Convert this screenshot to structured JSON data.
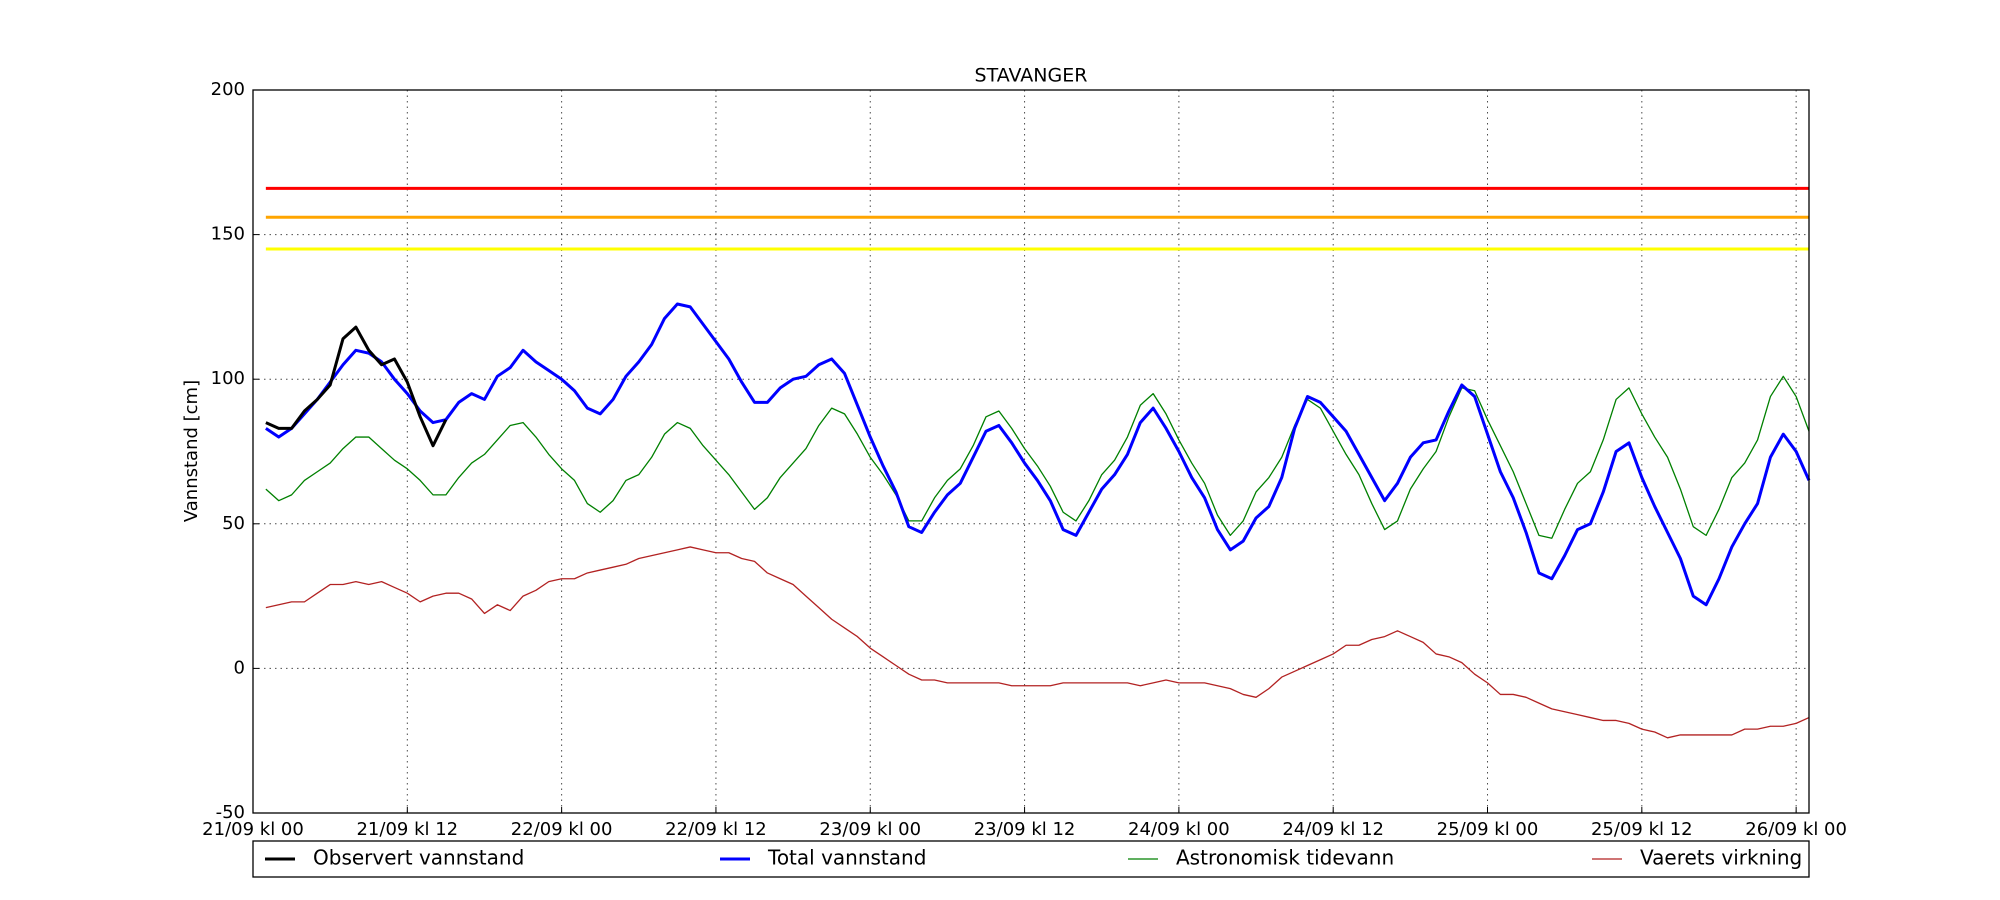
{
  "chart_data": {
    "type": "line",
    "title": "STAVANGER",
    "ylabel": "Vannstand [cm]",
    "xlim": [
      0,
      121
    ],
    "ylim": [
      -50,
      200
    ],
    "yticks": [
      -50,
      0,
      50,
      100,
      150,
      200
    ],
    "xticks": [
      {
        "value": 0,
        "label": "21/09 kl 00"
      },
      {
        "value": 12,
        "label": "21/09 kl 12"
      },
      {
        "value": 24,
        "label": "22/09 kl 00"
      },
      {
        "value": 36,
        "label": "22/09 kl 12"
      },
      {
        "value": 48,
        "label": "23/09 kl 00"
      },
      {
        "value": 60,
        "label": "23/09 kl 12"
      },
      {
        "value": 72,
        "label": "24/09 kl 00"
      },
      {
        "value": 84,
        "label": "24/09 kl 12"
      },
      {
        "value": 96,
        "label": "25/09 kl 00"
      },
      {
        "value": 108,
        "label": "25/09 kl 12"
      },
      {
        "value": 120,
        "label": "26/09 kl 00"
      }
    ],
    "grid": true,
    "legend": "bottom",
    "hlines": [
      {
        "value": 166,
        "color": "#ff0000"
      },
      {
        "value": 156,
        "color": "#ffa500"
      },
      {
        "value": 145,
        "color": "#ffff00"
      }
    ],
    "x": [
      1,
      2,
      3,
      4,
      5,
      6,
      7,
      8,
      9,
      10,
      11,
      12,
      13,
      14,
      15,
      16,
      17,
      18,
      19,
      20,
      21,
      22,
      23,
      24,
      25,
      26,
      27,
      28,
      29,
      30,
      31,
      32,
      33,
      34,
      35,
      36,
      37,
      38,
      39,
      40,
      41,
      42,
      43,
      44,
      45,
      46,
      47,
      48,
      49,
      50,
      51,
      52,
      53,
      54,
      55,
      56,
      57,
      58,
      59,
      60,
      61,
      62,
      63,
      64,
      65,
      66,
      67,
      68,
      69,
      70,
      71,
      72,
      73,
      74,
      75,
      76,
      77,
      78,
      79,
      80,
      81,
      82,
      83,
      84,
      85,
      86,
      87,
      88,
      89,
      90,
      91,
      92,
      93,
      94,
      95,
      96,
      97,
      98,
      99,
      100,
      101,
      102,
      103,
      104,
      105,
      106,
      107,
      108,
      109,
      110,
      111,
      112,
      113,
      114,
      115,
      116,
      117,
      118,
      119,
      120,
      121
    ],
    "series": [
      {
        "name": "Observert vannstand",
        "color": "#000000",
        "linewidth": 3,
        "values": [
          85,
          83,
          83,
          89,
          93,
          98,
          114,
          118,
          110,
          105,
          107,
          99,
          87,
          77,
          86,
          null,
          null,
          null,
          null,
          null,
          null,
          null,
          null,
          null,
          null,
          null,
          null,
          null,
          null,
          null,
          null,
          null,
          null,
          null,
          null,
          null,
          null,
          null,
          null,
          null,
          null,
          null,
          null,
          null,
          null,
          null,
          null,
          null,
          null,
          null,
          null,
          null,
          null,
          null,
          null,
          null,
          null,
          null,
          null,
          null,
          null,
          null,
          null,
          null,
          null,
          null,
          null,
          null,
          null,
          null,
          null,
          null,
          null,
          null,
          null,
          null,
          null,
          null,
          null,
          null,
          null,
          null,
          null,
          null,
          null,
          null,
          null,
          null,
          null,
          null,
          null,
          null,
          null,
          null,
          null,
          null,
          null,
          null,
          null,
          null,
          null,
          null,
          null,
          null,
          null,
          null,
          null,
          null,
          null,
          null,
          null,
          null,
          null,
          null,
          null,
          null,
          null,
          null,
          null,
          null,
          null
        ]
      },
      {
        "name": "Total vannstand",
        "color": "#0000ff",
        "linewidth": 3,
        "values": [
          83,
          80,
          83,
          88,
          93,
          99,
          105,
          110,
          109,
          106,
          100,
          95,
          89,
          85,
          86,
          92,
          95,
          93,
          101,
          104,
          110,
          106,
          103,
          100,
          96,
          90,
          88,
          93,
          101,
          106,
          112,
          121,
          126,
          125,
          119,
          113,
          107,
          99,
          92,
          92,
          97,
          100,
          101,
          105,
          107,
          102,
          91,
          80,
          70,
          61,
          49,
          47,
          54,
          60,
          64,
          73,
          82,
          84,
          78,
          71,
          65,
          58,
          48,
          46,
          54,
          62,
          67,
          74,
          85,
          90,
          83,
          75,
          66,
          59,
          48,
          41,
          44,
          52,
          56,
          66,
          83,
          94,
          92,
          87,
          82,
          74,
          66,
          58,
          64,
          73,
          78,
          79,
          89,
          98,
          94,
          81,
          68,
          59,
          47,
          33,
          31,
          39,
          48,
          50,
          61,
          75,
          78,
          66,
          56,
          47,
          38,
          25,
          22,
          31,
          42,
          50,
          57,
          73,
          81,
          75,
          65
        ]
      },
      {
        "name": "Astronomisk tidevann",
        "color": "#008000",
        "linewidth": 1.3,
        "values": [
          62,
          58,
          60,
          65,
          68,
          71,
          76,
          80,
          80,
          76,
          72,
          69,
          65,
          60,
          60,
          66,
          71,
          74,
          79,
          84,
          85,
          80,
          74,
          69,
          65,
          57,
          54,
          58,
          65,
          67,
          73,
          81,
          85,
          83,
          77,
          72,
          67,
          61,
          55,
          59,
          66,
          71,
          76,
          84,
          90,
          88,
          81,
          73,
          67,
          60,
          51,
          51,
          59,
          65,
          69,
          77,
          87,
          89,
          83,
          76,
          70,
          63,
          54,
          51,
          58,
          67,
          72,
          80,
          91,
          95,
          88,
          79,
          71,
          64,
          53,
          46,
          51,
          61,
          66,
          73,
          84,
          93,
          90,
          82,
          74,
          67,
          57,
          48,
          51,
          62,
          69,
          75,
          87,
          97,
          96,
          86,
          77,
          68,
          57,
          46,
          45,
          55,
          64,
          68,
          79,
          93,
          97,
          88,
          80,
          73,
          62,
          49,
          46,
          55,
          66,
          71,
          79,
          94,
          101,
          94,
          82
        ]
      },
      {
        "name": "Vaerets virkning",
        "color": "#b22222",
        "linewidth": 1.3,
        "values": [
          21,
          22,
          23,
          23,
          26,
          29,
          29,
          30,
          29,
          30,
          28,
          26,
          23,
          25,
          26,
          26,
          24,
          19,
          22,
          20,
          25,
          27,
          30,
          31,
          31,
          33,
          34,
          35,
          36,
          38,
          39,
          40,
          41,
          42,
          41,
          40,
          40,
          38,
          37,
          33,
          31,
          29,
          25,
          21,
          17,
          14,
          11,
          7,
          4,
          1,
          -2,
          -4,
          -4,
          -5,
          -5,
          -5,
          -5,
          -5,
          -6,
          -6,
          -6,
          -6,
          -5,
          -5,
          -5,
          -5,
          -5,
          -5,
          -6,
          -5,
          -4,
          -5,
          -5,
          -5,
          -6,
          -7,
          -9,
          -10,
          -7,
          -3,
          -1,
          1,
          3,
          5,
          8,
          8,
          10,
          11,
          13,
          11,
          9,
          5,
          4,
          2,
          -2,
          -5,
          -9,
          -9,
          -10,
          -12,
          -14,
          -15,
          -16,
          -17,
          -18,
          -18,
          -19,
          -21,
          -22,
          -24,
          -23,
          -23,
          -23,
          -23,
          -23,
          -21,
          -21,
          -20,
          -20,
          -19,
          -17
        ]
      }
    ]
  }
}
